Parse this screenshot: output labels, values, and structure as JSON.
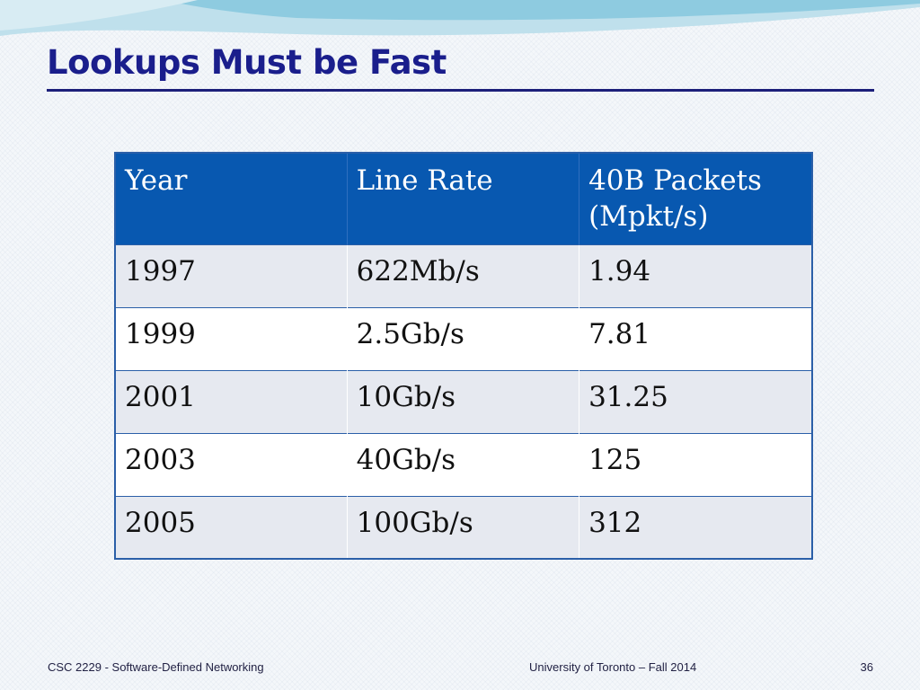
{
  "slide": {
    "title": "Lookups Must be Fast"
  },
  "table": {
    "headers": [
      "Year",
      "Line Rate",
      "40B Packets\n(Mpkt/s)"
    ],
    "rows": [
      [
        "1997",
        "622Mb/s",
        "1.94"
      ],
      [
        "1999",
        "2.5Gb/s",
        "7.81"
      ],
      [
        "2001",
        "10Gb/s",
        "31.25"
      ],
      [
        "2003",
        "40Gb/s",
        "125"
      ],
      [
        "2005",
        "100Gb/s",
        "312"
      ]
    ]
  },
  "footer": {
    "course": "CSC 2229 - Software-Defined Networking",
    "institution": "University of Toronto – Fall 2014",
    "page_number": "36"
  },
  "colors": {
    "title": "#1a1e8c",
    "header_bg": "#0858b0",
    "row_alt_bg": "#e6e9f0",
    "border": "#2b5fa8"
  }
}
